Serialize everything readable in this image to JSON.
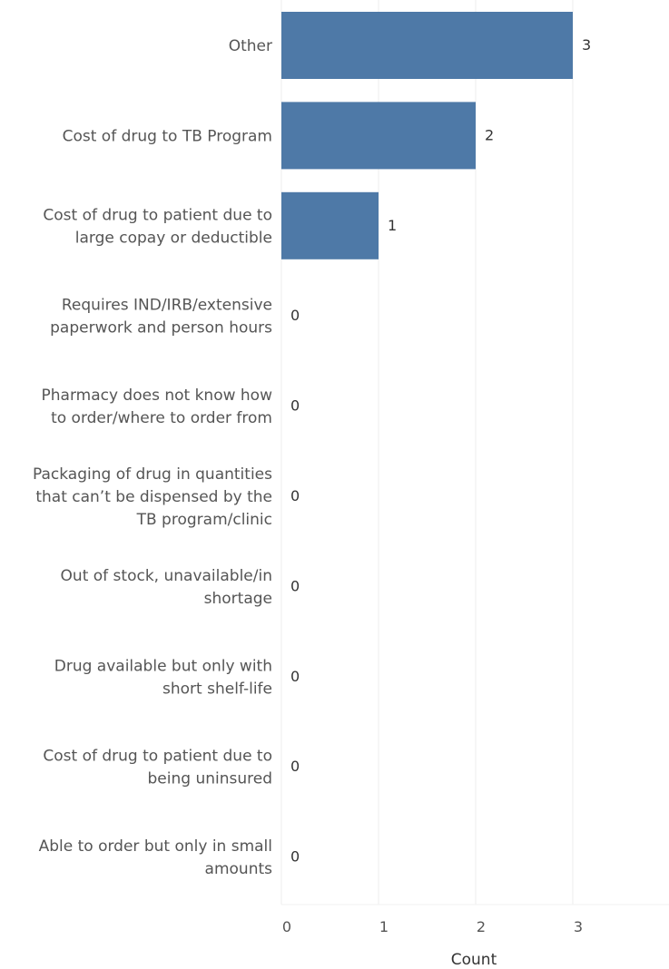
{
  "chart_data": {
    "type": "bar",
    "orientation": "horizontal",
    "categories": [
      [
        "Other"
      ],
      [
        "Cost of drug to TB Program"
      ],
      [
        "Cost of drug to patient due to",
        "large copay or deductible"
      ],
      [
        "Requires IND/IRB/extensive",
        "paperwork and person hours"
      ],
      [
        "Pharmacy does not know how",
        "to order/where to order from"
      ],
      [
        "Packaging of drug in quantities",
        "that can’t be dispensed by the",
        "TB program/clinic"
      ],
      [
        "Out of stock, unavailable/in",
        "shortage"
      ],
      [
        "Drug available but only with",
        "short shelf-life"
      ],
      [
        "Cost of drug to patient due to",
        "being uninsured"
      ],
      [
        "Able to order but only in small",
        "amounts"
      ]
    ],
    "values": [
      3,
      2,
      1,
      0,
      0,
      0,
      0,
      0,
      0,
      0
    ],
    "value_labels": [
      "3",
      "2",
      "1",
      "0",
      "0",
      "0",
      "0",
      "0",
      "0",
      "0"
    ],
    "xlabel": "Count",
    "xlim": [
      0,
      4
    ],
    "xticks": [
      "0",
      "1",
      "2",
      "3",
      "4"
    ],
    "grid": true,
    "bar_color": "#4e79a7"
  }
}
